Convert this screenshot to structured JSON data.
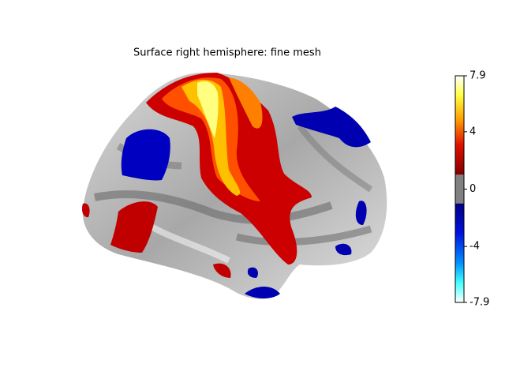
{
  "chart_data": {
    "type": "surface",
    "title": "Surface right hemisphere: fine mesh",
    "colorbar": {
      "ylim": [
        -7.9,
        7.9
      ],
      "yticks": [
        7.9,
        4,
        0,
        -4,
        -7.9
      ],
      "threshold": 1
    }
  }
}
